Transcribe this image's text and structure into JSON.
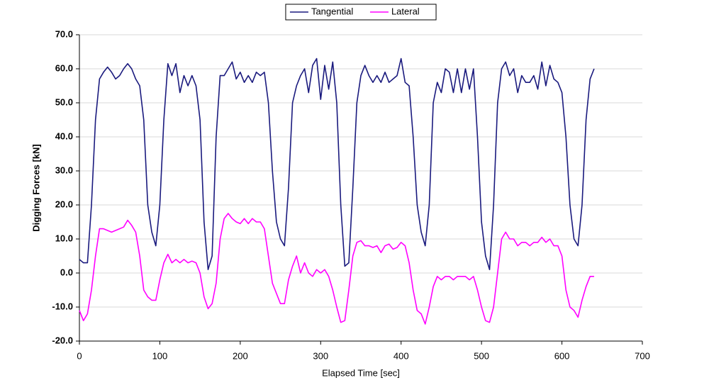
{
  "chart_data": {
    "type": "line",
    "x_label": "Elapsed Time [sec]",
    "y_label": "Digging Forces [kN]",
    "x": [
      0,
      5,
      10,
      15,
      20,
      25,
      30,
      35,
      40,
      45,
      50,
      55,
      60,
      65,
      70,
      75,
      80,
      85,
      90,
      95,
      100,
      105,
      110,
      115,
      120,
      125,
      130,
      135,
      140,
      145,
      150,
      155,
      160,
      165,
      170,
      175,
      180,
      185,
      190,
      195,
      200,
      205,
      210,
      215,
      220,
      225,
      230,
      235,
      240,
      245,
      250,
      255,
      260,
      265,
      270,
      275,
      280,
      285,
      290,
      295,
      300,
      305,
      310,
      315,
      320,
      325,
      330,
      335,
      340,
      345,
      350,
      355,
      360,
      365,
      370,
      375,
      380,
      385,
      390,
      395,
      400,
      405,
      410,
      415,
      420,
      425,
      430,
      435,
      440,
      445,
      450,
      455,
      460,
      465,
      470,
      475,
      480,
      485,
      490,
      495,
      500,
      505,
      510,
      515,
      520,
      525,
      530,
      535,
      540,
      545,
      550,
      555,
      560,
      565,
      570,
      575,
      580,
      585,
      590,
      595,
      600,
      605,
      610,
      615,
      620,
      625,
      630,
      635,
      640
    ],
    "series": [
      {
        "name": "Tangential",
        "color": "#1a1a7e",
        "values": [
          4,
          3,
          3,
          20,
          45,
          57,
          59,
          60.5,
          59,
          57,
          58,
          60,
          61.5,
          60,
          57,
          55,
          45,
          20,
          12,
          8,
          20,
          45,
          61.5,
          58,
          61.5,
          53,
          58,
          55,
          58,
          55,
          45,
          15,
          1,
          5,
          40,
          58,
          58,
          60,
          62,
          57,
          59,
          56,
          58,
          56,
          59,
          58,
          59,
          50,
          30,
          15,
          10,
          8,
          25,
          50,
          55,
          58,
          60,
          53,
          61,
          63,
          51,
          61,
          54,
          62,
          50,
          20,
          2,
          3,
          25,
          50,
          58,
          61,
          58,
          56,
          58,
          56,
          59,
          56,
          57,
          58,
          63,
          56,
          55,
          40,
          20,
          12,
          8,
          20,
          50,
          56,
          53,
          60,
          59,
          53,
          60,
          53,
          60,
          54,
          60,
          40,
          15,
          5,
          1,
          20,
          50,
          60,
          62,
          58,
          60,
          53,
          58,
          56,
          56,
          58,
          54,
          62,
          55,
          61,
          57,
          56,
          53,
          40,
          20,
          10,
          8,
          20,
          45,
          57,
          60
        ]
      },
      {
        "name": "Lateral",
        "color": "#ff00ff",
        "values": [
          -11,
          -14,
          -12,
          -5,
          5,
          13,
          13,
          12.5,
          12,
          12.5,
          13,
          13.5,
          15.5,
          14,
          12,
          5,
          -5,
          -7,
          -8,
          -8,
          -2,
          3,
          5.5,
          3,
          4,
          3,
          4,
          3,
          3.5,
          3,
          0,
          -7,
          -10.5,
          -9,
          -3,
          10,
          16,
          17.5,
          16,
          15,
          14.5,
          16,
          14.5,
          16,
          15,
          15,
          13,
          5,
          -3,
          -6,
          -9,
          -9,
          -2,
          2,
          5,
          0,
          3,
          0,
          -1,
          1,
          0,
          1,
          -1,
          -5,
          -10,
          -14.5,
          -14,
          -5,
          5,
          9,
          9.5,
          8,
          8,
          7.5,
          8,
          6,
          8,
          8.5,
          7,
          7.5,
          9,
          8,
          3,
          -5,
          -11,
          -12,
          -15,
          -10,
          -4,
          -1,
          -2,
          -1,
          -1,
          -2,
          -1,
          -1,
          -1,
          -2,
          -1,
          -5,
          -10,
          -14,
          -14.5,
          -10,
          0,
          10,
          12,
          10,
          10,
          8,
          9,
          9,
          8,
          9,
          9,
          10.5,
          9,
          10,
          8,
          8,
          5,
          -5,
          -10,
          -11,
          -13,
          -8,
          -4,
          -1,
          -1
        ]
      }
    ],
    "xlim": [
      0,
      700
    ],
    "xticks": [
      0,
      100,
      200,
      300,
      400,
      500,
      600,
      700
    ],
    "ylim": [
      -20,
      70
    ],
    "yticks": [
      {
        "value": -20,
        "label": "-20.0"
      },
      {
        "value": -10,
        "label": "-10.0"
      },
      {
        "value": 0,
        "label": "0.0"
      },
      {
        "value": 10,
        "label": "10.0"
      },
      {
        "value": 20,
        "label": "20.0"
      },
      {
        "value": 30,
        "label": "30.0"
      },
      {
        "value": 40,
        "label": "40.0"
      },
      {
        "value": 50,
        "label": "50.0"
      },
      {
        "value": 60,
        "label": "60.0"
      },
      {
        "value": 70,
        "label": "70.0"
      }
    ],
    "grid": true,
    "legend": "top"
  }
}
